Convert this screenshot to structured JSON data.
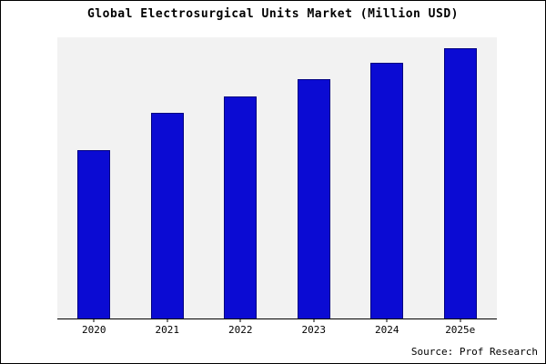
{
  "title": "Global Electrosurgical Units Market (Million USD)",
  "source": "Source: Prof Research",
  "colors": {
    "bar_fill": "#0b0bd3",
    "bar_border": "#000080",
    "plot_background": "#f2f2f2",
    "axis": "#000000",
    "text": "#000000"
  },
  "chart_data": {
    "type": "bar",
    "categories": [
      "2020",
      "2021",
      "2022",
      "2023",
      "2024",
      "2025e"
    ],
    "values": [
      60,
      73,
      79,
      85,
      91,
      96
    ],
    "title": "Global Electrosurgical Units Market (Million USD)",
    "xlabel": "",
    "ylabel": "",
    "ylim": [
      0,
      100
    ],
    "y_axis_labels_visible": false,
    "grid": false,
    "legend": false,
    "annotation": "Source: Prof Research"
  }
}
